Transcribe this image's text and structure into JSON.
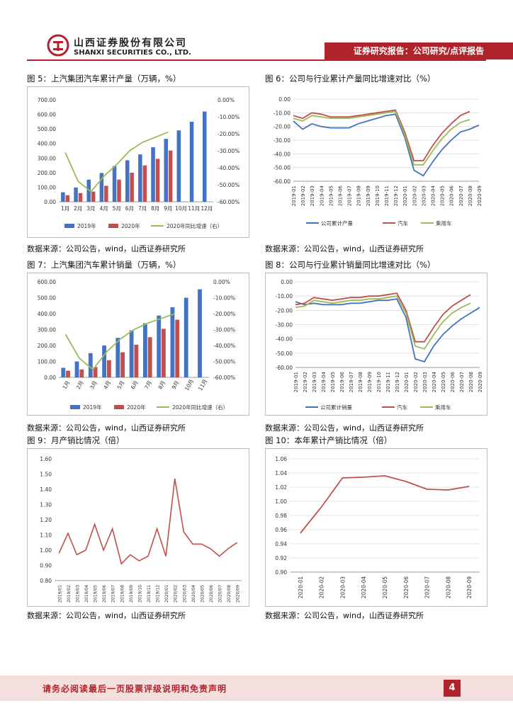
{
  "header": {
    "company_cn": "山西证券股份有限公司",
    "company_en": "SHANXI SECURITIES CO., LTD.",
    "report_type": "证券研究报告：公司研究/点评报告",
    "brand_color": "#b1232a"
  },
  "footer": {
    "disclaimer": "请务必阅读最后一页股票评级说明和免责声明",
    "page": "4"
  },
  "figures": [
    {
      "title": "图 5：上汽集团汽车累计产量（万辆，%）",
      "source": "数据来源：公司公告，wind，山西证券研究所"
    },
    {
      "title": "图 6：公司与行业累计产量同比增速对比（%）",
      "source": "数据来源：公司公告，wind，山西证券研究所"
    },
    {
      "title": "图 7：上汽集团汽车累计销量（万辆，%）",
      "source": "数据来源：公司公告，wind，山西证券研究所"
    },
    {
      "title": "图 8：公司与行业累计销量同比增速对比（%）",
      "source": "数据来源：公司公告，wind，山西证券研究所"
    },
    {
      "title": "图 9：月产销比情况（倍）",
      "source": "数据来源：公司公告，wind，山西证券研究所"
    },
    {
      "title": "图 10：本年累计产销比情况（倍）",
      "source": "数据来源：公司公告，wind，山西证券研究所"
    }
  ],
  "chart_data": [
    {
      "id": "fig5",
      "type": "bar",
      "title": "上汽集团汽车累计产量（万辆，%）",
      "categories": [
        "1月",
        "2月",
        "3月",
        "4月",
        "5月",
        "6月",
        "7月",
        "8月",
        "9月",
        "10月",
        "11月",
        "12月"
      ],
      "series": [
        {
          "name": "2019年",
          "color": "#4472c4",
          "values": [
            65,
            98,
            152,
            198,
            245,
            285,
            325,
            375,
            432,
            490,
            550,
            620
          ]
        },
        {
          "name": "2020年",
          "color": "#c0504d",
          "values": [
            45,
            60,
            70,
            110,
            152,
            200,
            250,
            295,
            352,
            null,
            null,
            null
          ]
        },
        {
          "name": "2020年同比增速（右）",
          "color": "#9bbb59",
          "axis": "right",
          "values": [
            -31,
            -48,
            -54,
            -45,
            -38,
            -30,
            -25,
            -22,
            -19,
            null,
            null,
            null
          ]
        }
      ],
      "y_left_ticks": [
        "0.00",
        "100.00",
        "200.00",
        "300.00",
        "400.00",
        "500.00",
        "600.00",
        "700.00"
      ],
      "ylim": [
        0,
        700
      ],
      "y_right_ticks": [
        "0.00%",
        "-10.00%",
        "-20.00%",
        "-30.00%",
        "-40.00%",
        "-50.00%",
        "-60.00%"
      ],
      "y2lim": [
        -60,
        0
      ],
      "legend": [
        "2019年",
        "2020年",
        "2020年同比增速（右）"
      ]
    },
    {
      "id": "fig6",
      "type": "line",
      "title": "公司与行业累计产量同比增速对比（%）",
      "categories": [
        "2019-01",
        "2019-02",
        "2019-03",
        "2019-04",
        "2019-05",
        "2019-06",
        "2019-07",
        "2019-08",
        "2019-09",
        "2019-10",
        "2019-11",
        "2019-12",
        "2020-01",
        "2020-02",
        "2020-03",
        "2020-04",
        "2020-05",
        "2020-06",
        "2020-07",
        "2020-08",
        "2020-09"
      ],
      "series": [
        {
          "name": "公司累计产量",
          "color": "#4472c4",
          "values": [
            -16,
            -22,
            -18,
            -20,
            -21,
            -21,
            -21,
            -18,
            -16,
            -14,
            -12,
            -11,
            -28,
            -52,
            -56,
            -46,
            -37,
            -30,
            -24,
            -22,
            -19
          ]
        },
        {
          "name": "汽车",
          "color": "#c0504d",
          "values": [
            -12,
            -14,
            -10,
            -11,
            -13,
            -13,
            -13,
            -12,
            -11,
            -10,
            -9,
            -8,
            -24,
            -45,
            -45,
            -34,
            -25,
            -18,
            -12,
            -9,
            null
          ]
        },
        {
          "name": "乘用车",
          "color": "#9bbb59",
          "values": [
            -14,
            -16,
            -12,
            -13,
            -14,
            -14,
            -14,
            -13,
            -12,
            -11,
            -10,
            -9,
            -26,
            -48,
            -48,
            -38,
            -29,
            -22,
            -17,
            -15,
            null
          ]
        }
      ],
      "y_ticks": [
        "0.00",
        "-10.00",
        "-20.00",
        "-30.00",
        "-40.00",
        "-50.00",
        "-60.00"
      ],
      "ylim": [
        -60,
        0
      ],
      "legend": [
        "公司累计产量",
        "汽车",
        "乘用车"
      ]
    },
    {
      "id": "fig7",
      "type": "bar",
      "title": "上汽集团汽车累计销量（万辆，%）",
      "categories": [
        "1月",
        "2月",
        "3月",
        "4月",
        "5月",
        "6月",
        "7月",
        "8月",
        "9月",
        "10月",
        "11月"
      ],
      "series": [
        {
          "name": "2019年",
          "color": "#4472c4",
          "values": [
            60,
            100,
            152,
            200,
            248,
            295,
            340,
            388,
            440,
            500,
            553
          ]
        },
        {
          "name": "2020年",
          "color": "#c0504d",
          "values": [
            42,
            50,
            65,
            108,
            158,
            205,
            252,
            305,
            362,
            null,
            null
          ]
        },
        {
          "name": "2020年同比增速（右）",
          "color": "#9bbb59",
          "axis": "right",
          "values": [
            -33,
            -48,
            -55,
            -44,
            -36,
            -30,
            -26,
            -23,
            -20,
            null,
            null
          ]
        }
      ],
      "y_left_ticks": [
        "0.00",
        "100.00",
        "200.00",
        "300.00",
        "400.00",
        "500.00",
        "600.00"
      ],
      "ylim": [
        0,
        600
      ],
      "y_right_ticks": [
        "0.00%",
        "-10.00%",
        "-20.00%",
        "-30.00%",
        "-40.00%",
        "-50.00%",
        "-60.00%"
      ],
      "y2lim": [
        -60,
        0
      ],
      "legend": [
        "2019年",
        "2020年",
        "2020年同比增速（右）"
      ]
    },
    {
      "id": "fig8",
      "type": "line",
      "title": "公司与行业累计销量同比增速对比（%）",
      "categories": [
        "2019-01",
        "2019-02",
        "2019-03",
        "2019-04",
        "2019-05",
        "2019-06",
        "2019-07",
        "2019-08",
        "2019-09",
        "2019-10",
        "2019-11",
        "2019-12",
        "2020-01",
        "2020-02",
        "2020-03",
        "2020-04",
        "2020-05",
        "2020-06",
        "2020-07",
        "2020-08",
        "2020-09"
      ],
      "series": [
        {
          "name": "公司累计销量",
          "color": "#4472c4",
          "values": [
            -14,
            -16,
            -15,
            -16,
            -16,
            -16,
            -15,
            -15,
            -14,
            -13,
            -13,
            -12,
            -25,
            -54,
            -56,
            -45,
            -37,
            -31,
            -26,
            -22,
            -18
          ]
        },
        {
          "name": "汽车",
          "color": "#c0504d",
          "values": [
            -16,
            -15,
            -11,
            -12,
            -13,
            -12,
            -11,
            -11,
            -10,
            -10,
            -9,
            -8,
            -20,
            -42,
            -42,
            -32,
            -23,
            -17,
            -13,
            -9,
            null
          ]
        },
        {
          "name": "乘用车",
          "color": "#9bbb59",
          "values": [
            -18,
            -17,
            -13,
            -14,
            -15,
            -14,
            -13,
            -13,
            -12,
            -12,
            -11,
            -10,
            -22,
            -45,
            -47,
            -37,
            -28,
            -22,
            -18,
            -15,
            null
          ]
        }
      ],
      "y_ticks": [
        "0.00",
        "-10.00",
        "-20.00",
        "-30.00",
        "-40.00",
        "-50.00",
        "-60.00"
      ],
      "ylim": [
        -60,
        0
      ],
      "legend": [
        "公司累计销量",
        "汽车",
        "乘用车"
      ]
    },
    {
      "id": "fig9",
      "type": "line",
      "title": "月产销比情况（倍）",
      "categories": [
        "2019/01",
        "2019/02",
        "2019/03",
        "2019/04",
        "2019/05",
        "2019/06",
        "2019/07",
        "2019/08",
        "2019/09",
        "2019/10",
        "2019/11",
        "2019/12",
        "2020/01",
        "2020/02",
        "2020/03",
        "2020/04",
        "2020/05",
        "2020/06",
        "2020/07",
        "2020/08",
        "2020/09"
      ],
      "series": [
        {
          "name": "月产销比",
          "color": "#c0504d",
          "values": [
            0.98,
            1.11,
            0.97,
            1.0,
            1.17,
            1.0,
            1.14,
            0.91,
            0.97,
            0.93,
            0.96,
            1.14,
            0.96,
            1.47,
            1.12,
            1.04,
            1.04,
            1.01,
            0.96,
            1.01,
            1.05
          ]
        }
      ],
      "y_ticks": [
        "0.80",
        "0.90",
        "1.00",
        "1.10",
        "1.20",
        "1.30",
        "1.40",
        "1.50",
        "1.60"
      ],
      "ylim": [
        0.8,
        1.6
      ]
    },
    {
      "id": "fig10",
      "type": "line",
      "title": "本年累计产销比情况（倍）",
      "categories": [
        "2020-01",
        "2020-02",
        "2020-03",
        "2020-04",
        "2020-05",
        "2020-06",
        "2020-07",
        "2020-08",
        "2020-09"
      ],
      "series": [
        {
          "name": "本年累计产销比",
          "color": "#c0504d",
          "values": [
            0.955,
            0.992,
            1.033,
            1.034,
            1.036,
            1.028,
            1.017,
            1.016,
            1.021
          ]
        }
      ],
      "y_ticks": [
        "0.90",
        "0.92",
        "0.94",
        "0.96",
        "0.98",
        "1.00",
        "1.02",
        "1.04",
        "1.06"
      ],
      "ylim": [
        0.9,
        1.06
      ]
    }
  ]
}
